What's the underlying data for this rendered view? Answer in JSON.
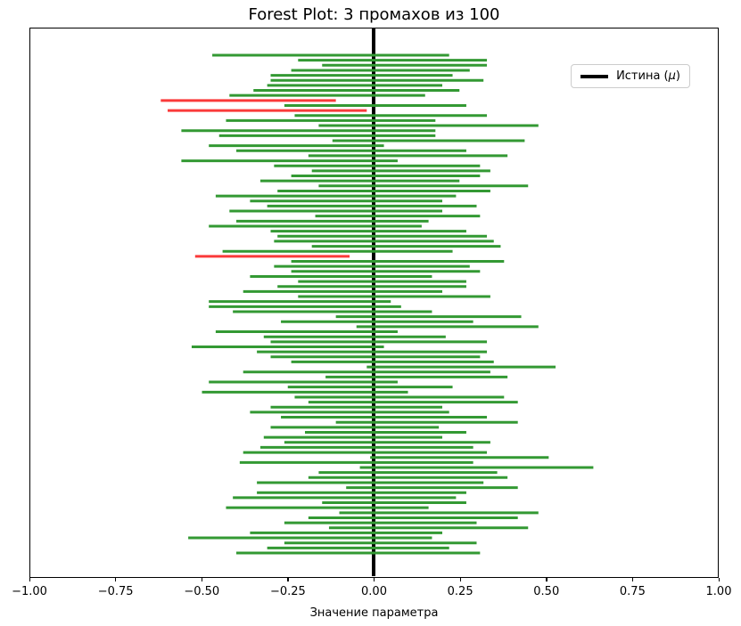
{
  "title": "Forest Plot: 3 промахов из 100",
  "legend": {
    "label_prefix": "Истина (",
    "label_mu": "μ",
    "label_suffix": ")"
  },
  "colors": {
    "covered": "#339933",
    "missed": "#fa3a3a",
    "truth_line": "#000000",
    "spine": "#000000"
  },
  "chart_data": {
    "type": "forest-ci",
    "title": "Forest Plot: 3 промахов из 100",
    "xlabel": "Значение параметра",
    "xlim": [
      -1.0,
      1.0
    ],
    "grid": false,
    "legend_position": "upper right",
    "legend_entries": [
      "Истина (μ)"
    ],
    "truth_mu": 0.0,
    "n_trials": 100,
    "n_misses": 3,
    "miss_indices": [
      9,
      11,
      40
    ],
    "ticks": [
      {
        "value": -1.0,
        "label": "−1.00"
      },
      {
        "value": -0.75,
        "label": "−0.75"
      },
      {
        "value": -0.5,
        "label": "−0.50"
      },
      {
        "value": -0.25,
        "label": "−0.25"
      },
      {
        "value": 0.0,
        "label": "0.00"
      },
      {
        "value": 0.25,
        "label": "0.25"
      },
      {
        "value": 0.5,
        "label": "0.50"
      },
      {
        "value": 0.75,
        "label": "0.75"
      },
      {
        "value": 1.0,
        "label": "1.00"
      }
    ],
    "intervals": [
      [
        -0.47,
        0.22
      ],
      [
        -0.22,
        0.33
      ],
      [
        -0.15,
        0.33
      ],
      [
        -0.24,
        0.28
      ],
      [
        -0.3,
        0.23
      ],
      [
        -0.3,
        0.32
      ],
      [
        -0.31,
        0.2
      ],
      [
        -0.35,
        0.25
      ],
      [
        -0.42,
        0.15
      ],
      [
        -0.62,
        -0.11
      ],
      [
        -0.26,
        0.27
      ],
      [
        -0.6,
        -0.02
      ],
      [
        -0.23,
        0.33
      ],
      [
        -0.43,
        0.18
      ],
      [
        -0.16,
        0.48
      ],
      [
        -0.56,
        0.18
      ],
      [
        -0.45,
        0.18
      ],
      [
        -0.12,
        0.44
      ],
      [
        -0.48,
        0.03
      ],
      [
        -0.4,
        0.27
      ],
      [
        -0.19,
        0.39
      ],
      [
        -0.56,
        0.07
      ],
      [
        -0.29,
        0.31
      ],
      [
        -0.18,
        0.34
      ],
      [
        -0.24,
        0.31
      ],
      [
        -0.33,
        0.25
      ],
      [
        -0.16,
        0.45
      ],
      [
        -0.28,
        0.34
      ],
      [
        -0.46,
        0.24
      ],
      [
        -0.36,
        0.2
      ],
      [
        -0.31,
        0.3
      ],
      [
        -0.42,
        0.2
      ],
      [
        -0.17,
        0.31
      ],
      [
        -0.4,
        0.16
      ],
      [
        -0.48,
        0.14
      ],
      [
        -0.3,
        0.27
      ],
      [
        -0.28,
        0.33
      ],
      [
        -0.29,
        0.35
      ],
      [
        -0.18,
        0.37
      ],
      [
        -0.44,
        0.23
      ],
      [
        -0.52,
        -0.07
      ],
      [
        -0.24,
        0.38
      ],
      [
        -0.29,
        0.28
      ],
      [
        -0.24,
        0.31
      ],
      [
        -0.36,
        0.17
      ],
      [
        -0.22,
        0.27
      ],
      [
        -0.28,
        0.27
      ],
      [
        -0.38,
        0.2
      ],
      [
        -0.22,
        0.34
      ],
      [
        -0.48,
        0.05
      ],
      [
        -0.48,
        0.08
      ],
      [
        -0.41,
        0.17
      ],
      [
        -0.11,
        0.43
      ],
      [
        -0.27,
        0.29
      ],
      [
        -0.05,
        0.48
      ],
      [
        -0.46,
        0.07
      ],
      [
        -0.32,
        0.21
      ],
      [
        -0.3,
        0.33
      ],
      [
        -0.53,
        0.03
      ],
      [
        -0.34,
        0.33
      ],
      [
        -0.3,
        0.31
      ],
      [
        -0.24,
        0.35
      ],
      [
        -0.02,
        0.53
      ],
      [
        -0.38,
        0.34
      ],
      [
        -0.14,
        0.39
      ],
      [
        -0.48,
        0.07
      ],
      [
        -0.25,
        0.23
      ],
      [
        -0.5,
        0.1
      ],
      [
        -0.23,
        0.38
      ],
      [
        -0.19,
        0.42
      ],
      [
        -0.3,
        0.2
      ],
      [
        -0.36,
        0.22
      ],
      [
        -0.27,
        0.33
      ],
      [
        -0.11,
        0.42
      ],
      [
        -0.3,
        0.19
      ],
      [
        -0.2,
        0.27
      ],
      [
        -0.32,
        0.2
      ],
      [
        -0.26,
        0.34
      ],
      [
        -0.33,
        0.29
      ],
      [
        -0.38,
        0.33
      ],
      [
        -0.01,
        0.51
      ],
      [
        -0.39,
        0.29
      ],
      [
        -0.04,
        0.64
      ],
      [
        -0.16,
        0.36
      ],
      [
        -0.19,
        0.39
      ],
      [
        -0.34,
        0.32
      ],
      [
        -0.08,
        0.42
      ],
      [
        -0.34,
        0.27
      ],
      [
        -0.41,
        0.24
      ],
      [
        -0.15,
        0.27
      ],
      [
        -0.43,
        0.16
      ],
      [
        -0.1,
        0.48
      ],
      [
        -0.19,
        0.42
      ],
      [
        -0.26,
        0.3
      ],
      [
        -0.13,
        0.45
      ],
      [
        -0.36,
        0.2
      ],
      [
        -0.54,
        0.17
      ],
      [
        -0.26,
        0.3
      ],
      [
        -0.31,
        0.22
      ],
      [
        -0.4,
        0.31
      ]
    ]
  }
}
